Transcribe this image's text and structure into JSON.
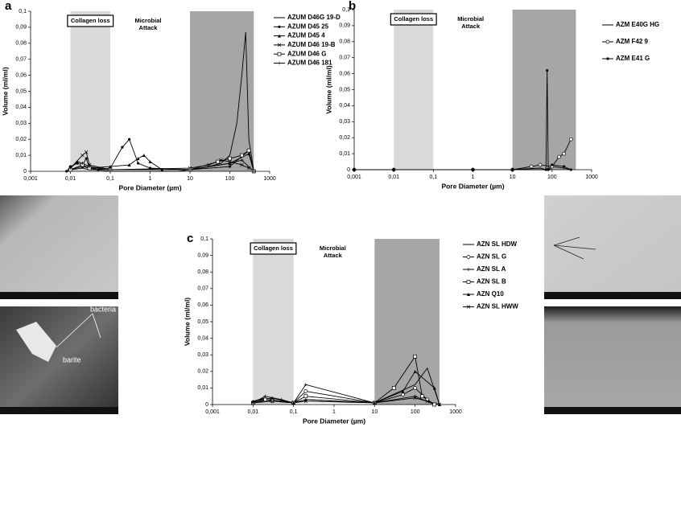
{
  "chart_data": [
    {
      "type": "line",
      "panel": "a",
      "xlabel": "Pore Diameter (µm)",
      "ylabel": "Volume (ml/ml)",
      "log_x": true,
      "xlim": [
        0.001,
        1000
      ],
      "xticks": [
        {
          "value": 0.001,
          "label": "0,001"
        },
        {
          "value": 0.01,
          "label": "0,01"
        },
        {
          "value": 0.1,
          "label": "0,1"
        },
        1,
        10,
        100,
        1000
      ],
      "ylim": [
        0,
        0.1
      ],
      "yticks": [
        0,
        {
          "value": 0.01,
          "label": "0,01"
        },
        {
          "value": 0.02,
          "label": "0,02"
        },
        {
          "value": 0.03,
          "label": "0,03"
        },
        {
          "value": 0.04,
          "label": "0,04"
        },
        {
          "value": 0.05,
          "label": "0,05"
        },
        {
          "value": 0.06,
          "label": "0,06"
        },
        {
          "value": 0.07,
          "label": "0,07"
        },
        {
          "value": 0.08,
          "label": "0,08"
        },
        {
          "value": 0.09,
          "label": "0,09"
        },
        {
          "value": 0.1,
          "label": "0,1"
        }
      ],
      "regions": [
        {
          "name": [
            "Collagen loss"
          ],
          "x": [
            0.01,
            0.1
          ],
          "color": "#d9d9d9"
        },
        {
          "name": [
            "Microbial",
            "Attack"
          ],
          "x": [
            10,
            400
          ],
          "color": "#a6a6a6"
        }
      ],
      "series": [
        {
          "name": "AZUM D46G 19-D",
          "color": "#000000",
          "marker": "none",
          "x": [
            0.008,
            0.01,
            0.02,
            0.03,
            0.05,
            0.1,
            1,
            5,
            10,
            30,
            60,
            100,
            150,
            200,
            250,
            300,
            400
          ],
          "values": [
            0,
            0.001,
            0.002,
            0.001,
            0.001,
            0,
            0,
            0,
            0.001,
            0.003,
            0.005,
            0.01,
            0.03,
            0.06,
            0.087,
            0.02,
            0
          ]
        },
        {
          "name": "AZUM D45 25",
          "color": "#000000",
          "marker": "circle",
          "x": [
            0.008,
            0.01,
            0.015,
            0.02,
            0.025,
            0.03,
            0.05,
            0.1,
            0.2,
            0.3,
            0.5,
            1,
            10,
            100,
            300,
            400
          ],
          "values": [
            0,
            0.003,
            0.005,
            0.004,
            0.008,
            0.002,
            0.001,
            0.002,
            0.015,
            0.02,
            0.005,
            0.002,
            0.001,
            0.003,
            0.013,
            0
          ]
        },
        {
          "name": "AZUM D45 4",
          "color": "#000000",
          "marker": "triangle",
          "x": [
            0.01,
            0.02,
            0.03,
            0.1,
            0.3,
            0.5,
            0.7,
            1,
            2,
            10,
            100,
            300,
            400
          ],
          "values": [
            0.001,
            0.003,
            0.002,
            0.003,
            0.004,
            0.008,
            0.01,
            0.006,
            0.001,
            0.001,
            0.005,
            0.011,
            0
          ]
        },
        {
          "name": "AZUM D46 19-B",
          "color": "#000000",
          "marker": "x",
          "x": [
            0.01,
            0.02,
            0.025,
            0.03,
            0.1,
            10,
            30,
            60,
            100,
            200,
            300
          ],
          "values": [
            0.002,
            0.01,
            0.012,
            0.004,
            0.001,
            0.002,
            0.004,
            0.007,
            0.006,
            0.004,
            0.002
          ]
        },
        {
          "name": "AZUM D46 G",
          "color": "#000000",
          "marker": "square",
          "x": [
            0.01,
            0.02,
            0.03,
            0.1,
            10,
            50,
            100,
            200,
            300,
            400
          ],
          "values": [
            0.001,
            0.004,
            0.002,
            0.001,
            0.001,
            0.006,
            0.008,
            0.01,
            0.013,
            0
          ]
        },
        {
          "name": "AZUM D46 181",
          "color": "#000000",
          "marker": "plus",
          "x": [
            0.01,
            0.015,
            0.02,
            0.03,
            0.1,
            10,
            100,
            200,
            400
          ],
          "values": [
            0.002,
            0.006,
            0.005,
            0.003,
            0.001,
            0.001,
            0.005,
            0.007,
            0
          ]
        }
      ]
    },
    {
      "type": "line",
      "panel": "b",
      "xlabel": "Pore Diameter (µm)",
      "ylabel": "Volume (ml/ml)",
      "log_x": true,
      "xlim": [
        0.001,
        1000
      ],
      "xticks": [
        {
          "value": 0.001,
          "label": "0,001"
        },
        {
          "value": 0.01,
          "label": "0,01"
        },
        {
          "value": 0.1,
          "label": "0,1"
        },
        1,
        10,
        100,
        1000
      ],
      "ylim": [
        0,
        0.1
      ],
      "yticks": [
        0,
        {
          "value": 0.01,
          "label": "0,01"
        },
        {
          "value": 0.02,
          "label": "0,02"
        },
        {
          "value": 0.03,
          "label": "0,03"
        },
        {
          "value": 0.04,
          "label": "0,04"
        },
        {
          "value": 0.05,
          "label": "0,05"
        },
        {
          "value": 0.06,
          "label": "0,06"
        },
        {
          "value": 0.07,
          "label": "0,07"
        },
        {
          "value": 0.08,
          "label": "0,08"
        },
        {
          "value": 0.09,
          "label": "0,09"
        },
        {
          "value": 0.1,
          "label": "0,1"
        }
      ],
      "regions": [
        {
          "name": [
            "Collagen loss"
          ],
          "x": [
            0.01,
            0.1
          ],
          "color": "#d9d9d9"
        },
        {
          "name": [
            "Microbial",
            "Attack"
          ],
          "x": [
            10,
            400
          ],
          "color": "#a6a6a6"
        }
      ],
      "series": [
        {
          "name": "AZM E40G HG",
          "color": "#000000",
          "marker": "none",
          "x": [
            0.001,
            0.01,
            0.1,
            1,
            10,
            50,
            70,
            80,
            90,
            100,
            200,
            300
          ],
          "values": [
            0,
            0,
            0,
            0,
            0,
            0.001,
            0,
            0.001,
            0,
            0.002,
            0.001,
            0
          ]
        },
        {
          "name": "AZM F42 9",
          "color": "#000000",
          "marker": "open-circle",
          "x": [
            0.001,
            0.01,
            1,
            10,
            30,
            50,
            100,
            150,
            200,
            300
          ],
          "values": [
            0,
            0,
            0,
            0,
            0.002,
            0.003,
            0.002,
            0.008,
            0.01,
            0.019
          ]
        },
        {
          "name": "AZM E41 G",
          "color": "#000000",
          "marker": "circle",
          "x": [
            0.001,
            0.01,
            1,
            10,
            70,
            75,
            80,
            100,
            200,
            300
          ],
          "values": [
            0,
            0,
            0,
            0,
            0,
            0.062,
            0,
            0.003,
            0.002,
            0
          ]
        }
      ]
    },
    {
      "type": "line",
      "panel": "c",
      "xlabel": "Pore Diameter (µm)",
      "ylabel": "Volume (ml/ml)",
      "log_x": true,
      "xlim": [
        0.001,
        1000
      ],
      "xticks": [
        {
          "value": 0.001,
          "label": "0,001"
        },
        {
          "value": 0.01,
          "label": "0,01"
        },
        {
          "value": 0.1,
          "label": "0,1"
        },
        1,
        10,
        100,
        1000
      ],
      "ylim": [
        0,
        0.1
      ],
      "yticks": [
        0,
        {
          "value": 0.01,
          "label": "0,01"
        },
        {
          "value": 0.02,
          "label": "0,02"
        },
        {
          "value": 0.03,
          "label": "0,03"
        },
        {
          "value": 0.04,
          "label": "0,04"
        },
        {
          "value": 0.05,
          "label": "0,05"
        },
        {
          "value": 0.06,
          "label": "0,06"
        },
        {
          "value": 0.07,
          "label": "0,07"
        },
        {
          "value": 0.08,
          "label": "0,08"
        },
        {
          "value": 0.09,
          "label": "0,09"
        },
        {
          "value": 0.1,
          "label": "0,1"
        }
      ],
      "regions": [
        {
          "name": [
            "Collagen loss"
          ],
          "x": [
            0.01,
            0.1
          ],
          "color": "#d9d9d9"
        },
        {
          "name": [
            "Microbial",
            "Attack"
          ],
          "x": [
            10,
            400
          ],
          "color": "#a6a6a6"
        }
      ],
      "series": [
        {
          "name": "AZN SL HDW",
          "color": "#000000",
          "marker": "none",
          "x": [
            0.01,
            0.02,
            0.03,
            0.1,
            0.2,
            10,
            100,
            200,
            400
          ],
          "values": [
            0.002,
            0.004,
            0.003,
            0.001,
            0.003,
            0.001,
            0.012,
            0.022,
            0
          ]
        },
        {
          "name": "AZN SL G",
          "color": "#000000",
          "marker": "open-circle",
          "x": [
            0.01,
            0.02,
            0.03,
            0.1,
            0.2,
            10,
            50,
            100,
            200,
            300
          ],
          "values": [
            0.001,
            0.003,
            0.002,
            0.001,
            0.008,
            0.001,
            0.006,
            0.01,
            0.003,
            0
          ]
        },
        {
          "name": "AZN SL A",
          "color": "#000000",
          "marker": "plus",
          "x": [
            0.01,
            0.02,
            0.05,
            0.1,
            0.2,
            10,
            100,
            300
          ],
          "values": [
            0.001,
            0.005,
            0.003,
            0.001,
            0.012,
            0.001,
            0.005,
            0
          ]
        },
        {
          "name": "AZN SL B",
          "color": "#000000",
          "marker": "square",
          "x": [
            0.01,
            0.03,
            0.1,
            0.2,
            10,
            30,
            100,
            150,
            300
          ],
          "values": [
            0.001,
            0.003,
            0.001,
            0.005,
            0.001,
            0.01,
            0.029,
            0.005,
            0
          ]
        },
        {
          "name": "AZN Q10",
          "color": "#000000",
          "marker": "triangle",
          "x": [
            0.01,
            0.03,
            0.1,
            0.2,
            10,
            50,
            100,
            300,
            400
          ],
          "values": [
            0.002,
            0.004,
            0.001,
            0.003,
            0.001,
            0.008,
            0.02,
            0.01,
            0
          ]
        },
        {
          "name": "AZN SL HWW",
          "color": "#000000",
          "marker": "x",
          "x": [
            0.01,
            0.03,
            0.1,
            0.2,
            10,
            100,
            200,
            400
          ],
          "values": [
            0.001,
            0.002,
            0.001,
            0.002,
            0.001,
            0.004,
            0.002,
            0
          ]
        }
      ]
    }
  ],
  "micrograph_labels": [
    "bacteria",
    "barite"
  ]
}
